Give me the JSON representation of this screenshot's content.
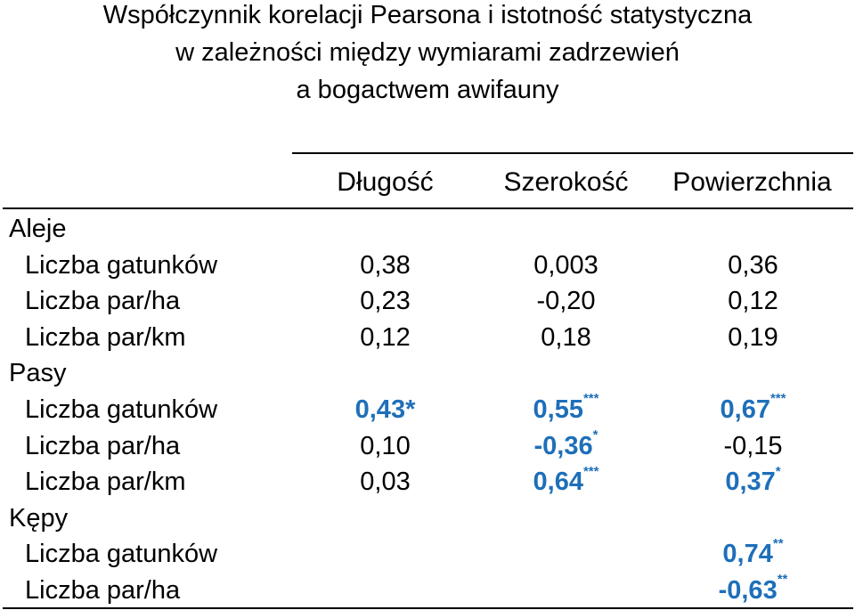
{
  "title": {
    "line1": "Współczynnik korelacji Pearsona i istotność statystyczna",
    "line2": "w zależności między wymiarami zadrzewień",
    "line3": "a bogactwem awifauny"
  },
  "columns": [
    "Długość",
    "Szerokość",
    "Powierzchnia"
  ],
  "groups": [
    {
      "name": "Aleje",
      "rows": [
        {
          "label": "Liczba gatunków",
          "cells": [
            {
              "value": "0,38",
              "sig": ""
            },
            {
              "value": "0,003",
              "sig": ""
            },
            {
              "value": "0,36",
              "sig": ""
            }
          ]
        },
        {
          "label": "Liczba par/ha",
          "cells": [
            {
              "value": "0,23",
              "sig": ""
            },
            {
              "value": "-0,20",
              "sig": ""
            },
            {
              "value": "0,12",
              "sig": ""
            }
          ]
        },
        {
          "label": "Liczba par/km",
          "cells": [
            {
              "value": "0,12",
              "sig": ""
            },
            {
              "value": "0,18",
              "sig": ""
            },
            {
              "value": "0,19",
              "sig": ""
            }
          ]
        }
      ]
    },
    {
      "name": "Pasy",
      "rows": [
        {
          "label": "Liczba gatunków",
          "cells": [
            {
              "value": "0,43*",
              "sig": "",
              "highlight": true
            },
            {
              "value": "0,55",
              "sig": "***",
              "highlight": true
            },
            {
              "value": "0,67",
              "sig": "***",
              "highlight": true
            }
          ]
        },
        {
          "label": "Liczba par/ha",
          "cells": [
            {
              "value": "0,10",
              "sig": ""
            },
            {
              "value": "-0,36",
              "sig": "*",
              "highlight": true
            },
            {
              "value": "-0,15",
              "sig": ""
            }
          ]
        },
        {
          "label": "Liczba par/km",
          "cells": [
            {
              "value": "0,03",
              "sig": ""
            },
            {
              "value": "0,64",
              "sig": "***",
              "highlight": true
            },
            {
              "value": "0,37",
              "sig": "*",
              "highlight": true
            }
          ]
        }
      ]
    },
    {
      "name": "Kępy",
      "rows": [
        {
          "label": "Liczba gatunków",
          "cells": [
            {
              "value": "",
              "sig": ""
            },
            {
              "value": "",
              "sig": ""
            },
            {
              "value": "0,74",
              "sig": "**",
              "highlight": true
            }
          ]
        },
        {
          "label": "Liczba par/ha",
          "cells": [
            {
              "value": "",
              "sig": ""
            },
            {
              "value": "",
              "sig": ""
            },
            {
              "value": "-0,63",
              "sig": "**",
              "highlight": true
            }
          ]
        }
      ]
    }
  ],
  "colors": {
    "significant": "#1e6fb9",
    "text": "#000000"
  }
}
